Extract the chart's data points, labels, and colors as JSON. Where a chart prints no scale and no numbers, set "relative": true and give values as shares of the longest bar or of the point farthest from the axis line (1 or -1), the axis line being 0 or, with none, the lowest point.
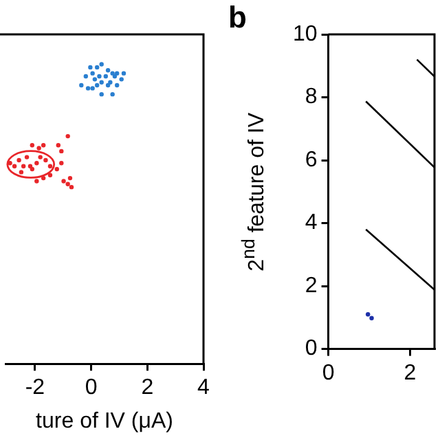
{
  "chart_data": [
    {
      "type": "scatter",
      "xlabel": "ture of IV (μA)",
      "xlim": [
        -3.05,
        4
      ],
      "xticks": [
        -2,
        0,
        2,
        4
      ],
      "relative": true,
      "marker": "circle",
      "series": [
        {
          "color": "#e8262a",
          "x": [
            -0.83,
            -1.17,
            -1.7,
            -2.1,
            -1.86,
            -2.29,
            -2.57,
            -2.73,
            -2.41,
            -2.17,
            -1.94,
            -1.62,
            -1.06,
            -1.22,
            -1.46,
            -1.7,
            -1.94,
            -0.98,
            -0.75,
            -0.7,
            -0.83,
            -2.89,
            -2.49,
            -2.1,
            -1.81,
            -1.46,
            -1.06
          ],
          "values": [
            0.76,
            0.73,
            0.73,
            0.73,
            0.72,
            0.69,
            0.68,
            0.66,
            0.66,
            0.66,
            0.67,
            0.68,
            0.67,
            0.65,
            0.63,
            0.62,
            0.61,
            0.61,
            0.62,
            0.59,
            0.6,
            0.67,
            0.64,
            0.65,
            0.69,
            0.66,
            0.71
          ]
        },
        {
          "color": "#2a7fd0",
          "x": [
            -0.03,
            0.21,
            0.37,
            0.6,
            0.76,
            0.92,
            1.16,
            -0.19,
            0.05,
            0.29,
            0.52,
            0.84,
            0.13,
            0.37,
            0.68,
            0.92,
            -0.35,
            -0.11,
            0.05,
            0.37,
            0.76,
            0.6,
            0.21,
            1.08
          ],
          "values": [
            0.99,
            0.99,
            1,
            0.98,
            0.97,
            0.97,
            0.97,
            0.96,
            0.97,
            0.96,
            0.96,
            0.96,
            0.95,
            0.94,
            0.94,
            0.93,
            0.93,
            0.92,
            0.92,
            0.9,
            0.9,
            0.93,
            0.93,
            0.95
          ]
        }
      ]
    },
    {
      "type": "scatter",
      "title": "b",
      "ylabel": "2$^{nd}$ feature of IV",
      "xlim": [
        0,
        2.6
      ],
      "ylim": [
        0,
        10
      ],
      "xticks": [
        0,
        2
      ],
      "yticks": [
        0,
        2,
        4,
        6,
        8,
        10
      ],
      "marker": "circle",
      "series": [
        {
          "type": "line",
          "color": "#000000",
          "marker": "none",
          "x": [
            0.92,
            2.6
          ],
          "values": [
            7.87,
            5.77
          ]
        },
        {
          "type": "line",
          "color": "#000000",
          "marker": "none",
          "x": [
            0.92,
            2.6
          ],
          "values": [
            3.8,
            1.88
          ]
        },
        {
          "type": "line",
          "color": "#000000",
          "marker": "none",
          "x": [
            2.17,
            2.6
          ],
          "values": [
            9.2,
            8.66
          ]
        },
        {
          "color": "#1c2fa8",
          "x": [
            0.97,
            1.06
          ],
          "values": [
            1.1,
            0.98
          ]
        }
      ]
    }
  ]
}
